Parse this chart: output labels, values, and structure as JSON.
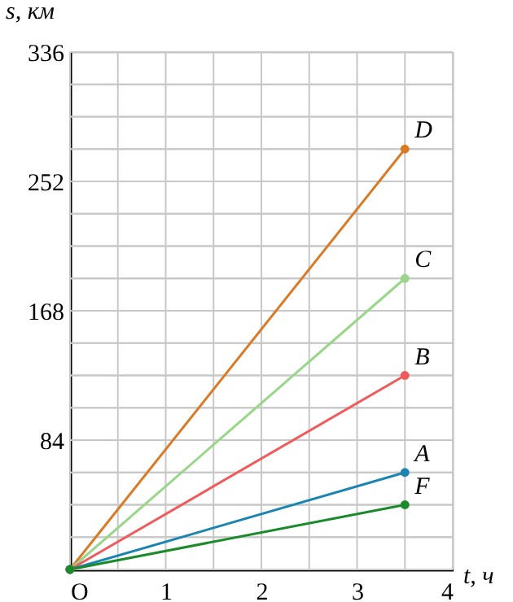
{
  "chart_data": {
    "type": "line",
    "xlabel": "t, ч",
    "ylabel": "s, км",
    "x": [
      0,
      3.5
    ],
    "series": [
      {
        "name": "D",
        "color": "#d97b26",
        "values": [
          0,
          273
        ]
      },
      {
        "name": "C",
        "color": "#99d68a",
        "values": [
          0,
          189
        ]
      },
      {
        "name": "B",
        "color": "#f05a5a",
        "values": [
          0,
          126
        ]
      },
      {
        "name": "A",
        "color": "#1a85b0",
        "values": [
          0,
          63
        ]
      },
      {
        "name": "F",
        "color": "#1a8a2a",
        "values": [
          0,
          42
        ]
      }
    ],
    "xlim": [
      0,
      4
    ],
    "ylim": [
      0,
      336
    ],
    "xticks": [
      {
        "value": 0,
        "label": "O"
      },
      {
        "value": 0.5,
        "label": null
      },
      1,
      {
        "value": 1.5,
        "label": null
      },
      2,
      {
        "value": 2.5,
        "label": null
      },
      3,
      {
        "value": 3.5,
        "label": null
      },
      4
    ],
    "yticks": [
      {
        "value": 0,
        "label": null
      },
      {
        "value": 21,
        "label": null
      },
      {
        "value": 42,
        "label": null
      },
      {
        "value": 63,
        "label": null
      },
      84,
      {
        "value": 105,
        "label": null
      },
      {
        "value": 126,
        "label": null
      },
      {
        "value": 147,
        "label": null
      },
      168,
      {
        "value": 189,
        "label": null
      },
      {
        "value": 210,
        "label": null
      },
      {
        "value": 231,
        "label": null
      },
      252,
      {
        "value": 273,
        "label": null
      },
      {
        "value": 294,
        "label": null
      },
      {
        "value": 315,
        "label": null
      },
      336
    ],
    "grid": true,
    "legend": false,
    "marker": "circle",
    "line_style": "solid"
  }
}
